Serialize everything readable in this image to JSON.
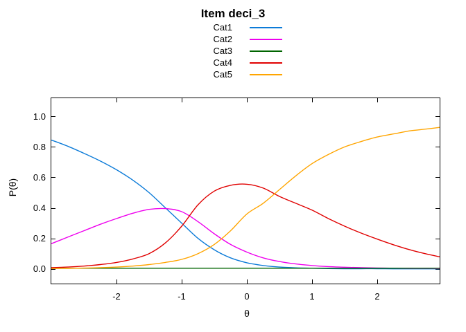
{
  "chart_data": {
    "type": "line",
    "title": "Item deci_3",
    "xlabel": "θ",
    "ylabel": "P(θ)",
    "xlim": [
      -3,
      3
    ],
    "ylim": [
      -0.1,
      1.125
    ],
    "grid": false,
    "legend_position": "above-center",
    "xticks": {
      "values": [
        -2,
        -1,
        0,
        1,
        2
      ],
      "labels": [
        "-2",
        "-1",
        "0",
        "1",
        "2"
      ]
    },
    "yticks": {
      "values": [
        0,
        0.2,
        0.4,
        0.6,
        0.8,
        1.0
      ],
      "labels": [
        "0.0",
        "0.2",
        "0.4",
        "0.6",
        "0.8",
        "1.0"
      ]
    },
    "x": [
      -3,
      -2.75,
      -2.5,
      -2.25,
      -2,
      -1.75,
      -1.5,
      -1.25,
      -1,
      -0.75,
      -0.5,
      -0.25,
      0,
      0.25,
      0.5,
      0.75,
      1,
      1.25,
      1.5,
      1.75,
      2,
      2.25,
      2.5,
      2.75,
      3
    ],
    "series": [
      {
        "name": "Cat1",
        "color": "#0c7bd8",
        "values": [
          0.845,
          0.805,
          0.758,
          0.708,
          0.65,
          0.582,
          0.5,
          0.4,
          0.3,
          0.2,
          0.125,
          0.072,
          0.04,
          0.022,
          0.012,
          0.007,
          0.004,
          0.002,
          0.001,
          0.001,
          0.001,
          0.0,
          0.0,
          0.0,
          0.0
        ]
      },
      {
        "name": "Cat2",
        "color": "#ee00ee",
        "values": [
          0.165,
          0.208,
          0.25,
          0.292,
          0.33,
          0.365,
          0.39,
          0.395,
          0.375,
          0.31,
          0.23,
          0.16,
          0.11,
          0.072,
          0.048,
          0.032,
          0.022,
          0.015,
          0.011,
          0.008,
          0.006,
          0.004,
          0.003,
          0.003,
          0.002
        ]
      },
      {
        "name": "Cat3",
        "color": "#006400",
        "values": [
          0.004,
          0.004,
          0.004,
          0.004,
          0.004,
          0.004,
          0.004,
          0.004,
          0.004,
          0.004,
          0.004,
          0.004,
          0.004,
          0.004,
          0.004,
          0.004,
          0.004,
          0.004,
          0.004,
          0.004,
          0.004,
          0.004,
          0.004,
          0.004,
          0.004
        ]
      },
      {
        "name": "Cat4",
        "color": "#e00000",
        "values": [
          0.008,
          0.012,
          0.018,
          0.028,
          0.042,
          0.065,
          0.1,
          0.17,
          0.28,
          0.42,
          0.51,
          0.548,
          0.555,
          0.53,
          0.475,
          0.43,
          0.385,
          0.33,
          0.28,
          0.235,
          0.195,
          0.158,
          0.125,
          0.098,
          0.075
        ]
      },
      {
        "name": "Cat5",
        "color": "#ffa500",
        "values": [
          0.002,
          0.003,
          0.005,
          0.008,
          0.012,
          0.018,
          0.028,
          0.042,
          0.062,
          0.1,
          0.16,
          0.25,
          0.36,
          0.43,
          0.52,
          0.61,
          0.69,
          0.75,
          0.8,
          0.835,
          0.865,
          0.885,
          0.905,
          0.917,
          0.93
        ]
      }
    ],
    "colors": {
      "axis": "#000000",
      "background": "#ffffff",
      "text": "#000000"
    }
  }
}
